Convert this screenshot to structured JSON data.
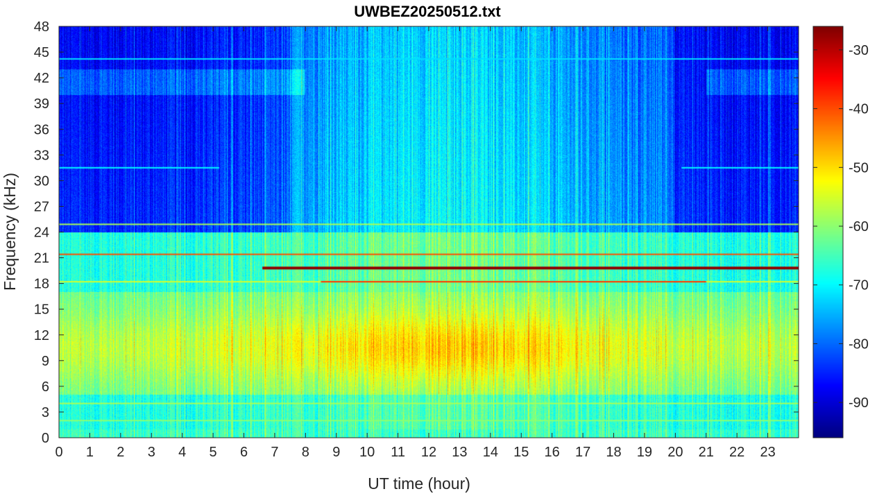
{
  "chart_data": {
    "type": "heatmap",
    "title": "UWBEZ20250512.txt",
    "xlabel": "UT time (hour)",
    "ylabel": "Frequency (kHz)",
    "xlim": [
      0,
      24
    ],
    "ylim": [
      0,
      48
    ],
    "x_ticks": [
      0,
      1,
      2,
      3,
      4,
      5,
      6,
      7,
      8,
      9,
      10,
      11,
      12,
      13,
      14,
      15,
      16,
      17,
      18,
      19,
      20,
      21,
      22,
      23
    ],
    "y_ticks": [
      0,
      3,
      6,
      9,
      12,
      15,
      18,
      21,
      24,
      27,
      30,
      33,
      36,
      39,
      42,
      45,
      48
    ],
    "colorbar": {
      "ticks": [
        -30,
        -40,
        -50,
        -60,
        -70,
        -80,
        -90
      ],
      "range": [
        -96,
        -26
      ],
      "colormap": "jet"
    },
    "features": [
      {
        "freq_khz": 19.8,
        "t_start": 6.6,
        "t_end": 24,
        "level_db": -27
      },
      {
        "freq_khz": 21.4,
        "t_start": 0,
        "t_end": 24,
        "level_db": -40
      },
      {
        "freq_khz": 18.2,
        "t_start": 0,
        "t_end": 24,
        "level_db": -55
      },
      {
        "freq_khz": 18.2,
        "t_start": 8.5,
        "t_end": 21,
        "level_db": -38
      },
      {
        "freq_khz": 24.9,
        "t_start": 0,
        "t_end": 24,
        "level_db": -58
      },
      {
        "freq_khz": 44.2,
        "t_start": 0,
        "t_end": 24,
        "level_db": -72
      },
      {
        "freq_khz": 4.0,
        "t_start": 0,
        "t_end": 24,
        "level_db": -58
      },
      {
        "freq_khz": 2.0,
        "t_start": 0,
        "t_end": 24,
        "level_db": -60
      },
      {
        "freq_khz": 31.5,
        "t_start": 0,
        "t_end": 5.2,
        "level_db": -70
      },
      {
        "freq_khz": 31.5,
        "t_start": 20.2,
        "t_end": 24,
        "level_db": -70
      }
    ]
  }
}
